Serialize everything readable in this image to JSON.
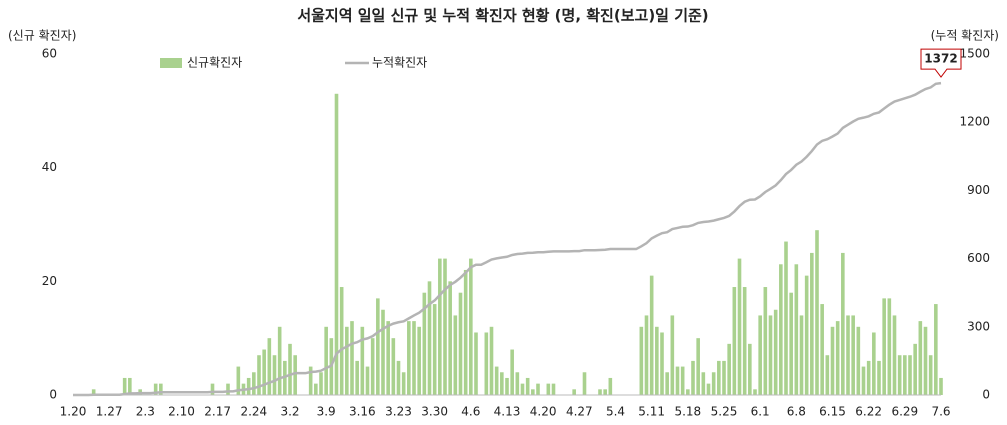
{
  "chart_data": {
    "type": "bar_line",
    "title": "서울지역 일일 신규 및 누적 확진자 현황 (명, 확진(보고)일 기준)",
    "y_label": "(신규 확진자)",
    "y2_label": "(누적 확진자)",
    "categories": [
      "1.20",
      null,
      null,
      null,
      null,
      null,
      null,
      "1.27",
      null,
      null,
      null,
      null,
      null,
      null,
      "2.3",
      null,
      null,
      null,
      null,
      null,
      null,
      "2.10",
      null,
      null,
      null,
      null,
      null,
      null,
      "2.17",
      null,
      null,
      null,
      null,
      null,
      null,
      "2.24",
      null,
      null,
      null,
      null,
      null,
      null,
      "3.2",
      null,
      null,
      null,
      null,
      null,
      null,
      "3.9",
      null,
      null,
      null,
      null,
      null,
      null,
      "3.16",
      null,
      null,
      null,
      null,
      null,
      null,
      "3.23",
      null,
      null,
      null,
      null,
      null,
      null,
      "3.30",
      null,
      null,
      null,
      null,
      null,
      null,
      "4.6",
      null,
      null,
      null,
      null,
      null,
      null,
      "4.13",
      null,
      null,
      null,
      null,
      null,
      null,
      "4.20",
      null,
      null,
      null,
      null,
      null,
      null,
      "4.27",
      null,
      null,
      null,
      null,
      null,
      null,
      "5.4",
      null,
      null,
      null,
      null,
      null,
      null,
      "5.11",
      null,
      null,
      null,
      null,
      null,
      null,
      "5.18",
      null,
      null,
      null,
      null,
      null,
      null,
      "5.25",
      null,
      null,
      null,
      null,
      null,
      null,
      "6.1",
      null,
      null,
      null,
      null,
      null,
      null,
      "6.8",
      null,
      null,
      null,
      null,
      null,
      null,
      "6.15",
      null,
      null,
      null,
      null,
      null,
      null,
      "6.22",
      null,
      null,
      null,
      null,
      null,
      null,
      "6.29",
      null,
      null,
      null,
      null,
      null,
      null,
      "7.6"
    ],
    "series": [
      {
        "name": "신규확진자",
        "type": "bar",
        "color": "#a9d18e",
        "values": [
          0,
          0,
          0,
          0,
          1,
          0,
          0,
          0,
          0,
          0,
          3,
          3,
          0,
          1,
          0,
          0,
          2,
          2,
          0,
          0,
          0,
          0,
          0,
          0,
          0,
          0,
          0,
          2,
          0,
          0,
          2,
          0,
          5,
          2,
          3,
          4,
          7,
          8,
          10,
          7,
          12,
          6,
          9,
          7,
          0,
          0,
          5,
          2,
          4,
          12,
          10,
          53,
          19,
          12,
          13,
          6,
          12,
          5,
          10,
          17,
          15,
          13,
          10,
          6,
          4,
          13,
          13,
          12,
          18,
          20,
          16,
          24,
          24,
          20,
          14,
          18,
          22,
          24,
          11,
          0,
          11,
          12,
          5,
          4,
          3,
          8,
          4,
          2,
          3,
          1,
          2,
          0,
          2,
          2,
          0,
          0,
          0,
          1,
          0,
          4,
          0,
          0,
          1,
          1,
          3,
          0,
          0,
          0,
          0,
          0,
          12,
          14,
          21,
          12,
          11,
          4,
          14,
          5,
          5,
          1,
          6,
          10,
          4,
          2,
          4,
          6,
          6,
          9,
          19,
          24,
          19,
          9,
          1,
          14,
          19,
          14,
          15,
          23,
          27,
          18,
          23,
          14,
          21,
          25,
          29,
          16,
          7,
          12,
          13,
          25,
          14,
          14,
          12,
          5,
          6,
          11,
          6,
          17,
          17,
          14,
          7,
          7,
          7,
          9,
          13,
          12,
          7,
          16,
          3
        ]
      },
      {
        "name": "누적확진자",
        "type": "line",
        "axis": "y2",
        "color": "#b4b4b4",
        "values": [
          0,
          0,
          0,
          0,
          1,
          1,
          1,
          1,
          1,
          1,
          4,
          7,
          7,
          8,
          8,
          8,
          10,
          12,
          12,
          12,
          12,
          12,
          12,
          12,
          12,
          12,
          12,
          14,
          14,
          14,
          16,
          16,
          21,
          23,
          26,
          30,
          37,
          45,
          55,
          62,
          74,
          80,
          89,
          96,
          96,
          96,
          101,
          103,
          107,
          119,
          129,
          182,
          201,
          213,
          226,
          232,
          244,
          249,
          259,
          276,
          291,
          304,
          314,
          320,
          324,
          337,
          350,
          362,
          380,
          400,
          416,
          440,
          464,
          484,
          498,
          516,
          538,
          562,
          573,
          573,
          584,
          596,
          601,
          605,
          608,
          616,
          620,
          622,
          625,
          626,
          628,
          628,
          630,
          632,
          632,
          632,
          632,
          633,
          633,
          637,
          637,
          637,
          638,
          639,
          642,
          642,
          642,
          642,
          642,
          642,
          654,
          668,
          689,
          701,
          712,
          716,
          730,
          735,
          740,
          741,
          747,
          757,
          761,
          763,
          767,
          773,
          779,
          788,
          807,
          831,
          850,
          859,
          860,
          874,
          893,
          907,
          922,
          945,
          972,
          990,
          1013,
          1027,
          1048,
          1073,
          1102,
          1118,
          1125,
          1137,
          1150,
          1175,
          1189,
          1203,
          1215,
          1220,
          1226,
          1237,
          1243,
          1260,
          1277,
          1291,
          1298,
          1305,
          1312,
          1321,
          1334,
          1346,
          1353,
          1369,
          1372
        ]
      }
    ],
    "ylim": [
      0,
      60
    ],
    "yticks": [
      0,
      20,
      40,
      60
    ],
    "y2lim": [
      0,
      1500
    ],
    "y2ticks": [
      0,
      300,
      600,
      900,
      1200,
      1500
    ],
    "label_last_point": true
  }
}
